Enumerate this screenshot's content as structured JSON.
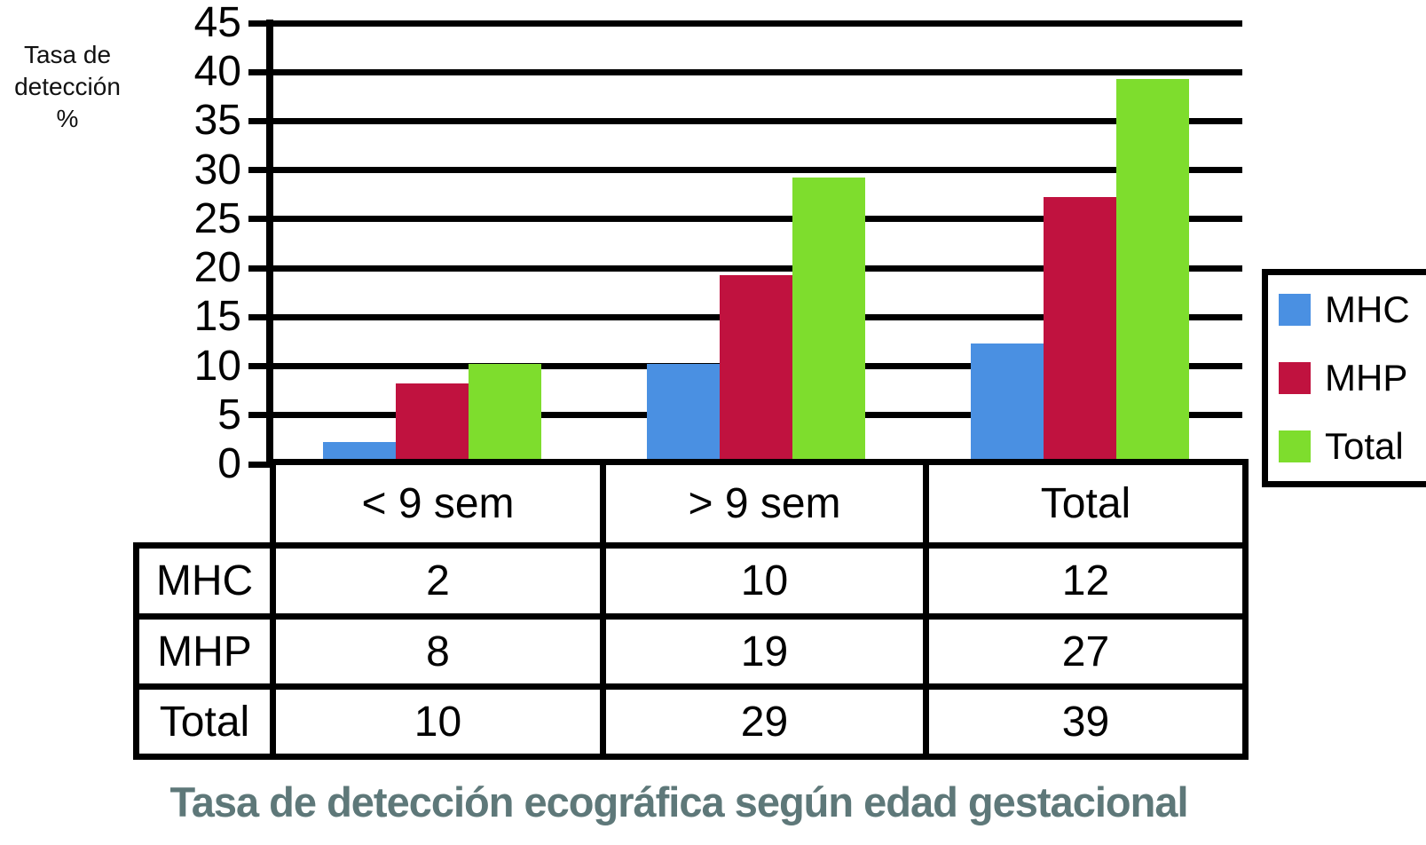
{
  "ylabel_lines": [
    "Tasa de",
    "detección",
    "%"
  ],
  "colors": {
    "mhc_blue": "#4a90e2",
    "mhp_red": "#c0123f",
    "total_green": "#7edd2d",
    "caption_teal": "#5e7879",
    "line_black": "#000000"
  },
  "chart_data": {
    "type": "bar",
    "title": "Tasa de detección ecográfica según edad gestacional",
    "ylabel": "Tasa de detección %",
    "xlabel": "",
    "categories": [
      "< 9 sem",
      "> 9 sem",
      "Total"
    ],
    "series": [
      {
        "name": "MHC",
        "color": "#4a90e2",
        "values": [
          2,
          10,
          12
        ]
      },
      {
        "name": "MHP",
        "color": "#c0123f",
        "values": [
          8,
          19,
          27
        ]
      },
      {
        "name": "Total",
        "color": "#7edd2d",
        "values": [
          10,
          29,
          39
        ]
      }
    ],
    "ylim": [
      0,
      45
    ],
    "yticks": [
      0,
      5,
      10,
      15,
      20,
      25,
      30,
      35,
      40,
      45
    ],
    "grid": true,
    "legend_position": "right"
  },
  "legend": {
    "items": [
      {
        "label": "MHC",
        "color": "#4a90e2"
      },
      {
        "label": "MHP",
        "color": "#c0123f"
      },
      {
        "label": "Total",
        "color": "#7edd2d"
      }
    ]
  },
  "table": {
    "column_headers": [
      "< 9 sem",
      "> 9 sem",
      "Total"
    ],
    "rows": [
      {
        "label": "MHC",
        "values": [
          "2",
          "10",
          "12"
        ]
      },
      {
        "label": "MHP",
        "values": [
          "8",
          "19",
          "27"
        ]
      },
      {
        "label": "Total",
        "values": [
          "10",
          "29",
          "39"
        ]
      }
    ]
  }
}
